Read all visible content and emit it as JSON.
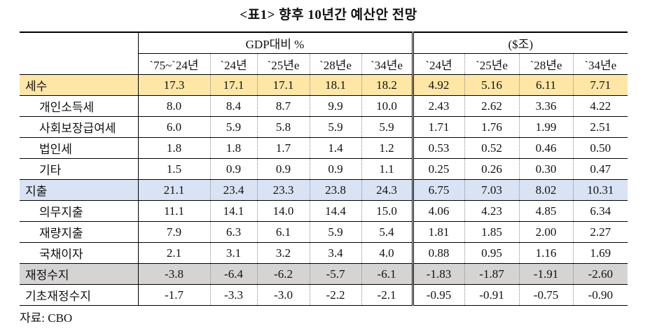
{
  "title": "<표1> 향후 10년간 예산안 전망",
  "table": {
    "group_headers": [
      "GDP대비 %",
      "($조)"
    ],
    "columns": [
      "`75~`24년",
      "`24년",
      "`25년e",
      "`28년e",
      "`34년e",
      "`24년",
      "`25년e",
      "`28년e",
      "`34년e"
    ],
    "rows": [
      {
        "label": "세수",
        "level": 1,
        "style": "tax",
        "values": [
          "17.3",
          "17.1",
          "17.1",
          "18.1",
          "18.2",
          "4.92",
          "5.16",
          "6.11",
          "7.71"
        ]
      },
      {
        "label": "개인소득세",
        "level": 2,
        "style": "",
        "values": [
          "8.0",
          "8.4",
          "8.7",
          "9.9",
          "10.0",
          "2.43",
          "2.62",
          "3.36",
          "4.22"
        ]
      },
      {
        "label": "사회보장급여세",
        "level": 2,
        "style": "",
        "values": [
          "6.0",
          "5.9",
          "5.8",
          "5.9",
          "5.9",
          "1.71",
          "1.76",
          "1.99",
          "2.51"
        ]
      },
      {
        "label": "법인세",
        "level": 2,
        "style": "",
        "values": [
          "1.8",
          "1.8",
          "1.7",
          "1.4",
          "1.2",
          "0.53",
          "0.52",
          "0.46",
          "0.50"
        ]
      },
      {
        "label": "기타",
        "level": 2,
        "style": "",
        "values": [
          "1.5",
          "0.9",
          "0.9",
          "0.9",
          "1.1",
          "0.25",
          "0.26",
          "0.30",
          "0.47"
        ]
      },
      {
        "label": "지출",
        "level": 1,
        "style": "exp",
        "values": [
          "21.1",
          "23.4",
          "23.3",
          "23.8",
          "24.3",
          "6.75",
          "7.03",
          "8.02",
          "10.31"
        ]
      },
      {
        "label": "의무지출",
        "level": 2,
        "style": "",
        "values": [
          "11.1",
          "14.1",
          "14.0",
          "14.4",
          "15.0",
          "4.06",
          "4.23",
          "4.85",
          "6.34"
        ]
      },
      {
        "label": "재량지출",
        "level": 2,
        "style": "",
        "values": [
          "7.9",
          "6.3",
          "6.1",
          "5.9",
          "5.4",
          "1.81",
          "1.85",
          "2.00",
          "2.27"
        ]
      },
      {
        "label": "국채이자",
        "level": 2,
        "style": "",
        "values": [
          "2.1",
          "3.1",
          "3.2",
          "3.4",
          "4.0",
          "0.88",
          "0.95",
          "1.16",
          "1.69"
        ]
      },
      {
        "label": "재정수지",
        "level": 1,
        "style": "bal",
        "values": [
          "-3.8",
          "-6.4",
          "-6.2",
          "-5.7",
          "-6.1",
          "-1.83",
          "-1.87",
          "-1.91",
          "-2.60"
        ]
      },
      {
        "label": "기초재정수지",
        "level": 1,
        "style": "",
        "values": [
          "-1.7",
          "-3.3",
          "-3.0",
          "-2.2",
          "-2.1",
          "-0.95",
          "-0.91",
          "-0.75",
          "-0.90"
        ]
      }
    ]
  },
  "colors": {
    "tax_row": "#fde6a6",
    "expenditure_row": "#dae3f3",
    "balance_row": "#d6d3d3"
  },
  "source": "자료: CBO"
}
